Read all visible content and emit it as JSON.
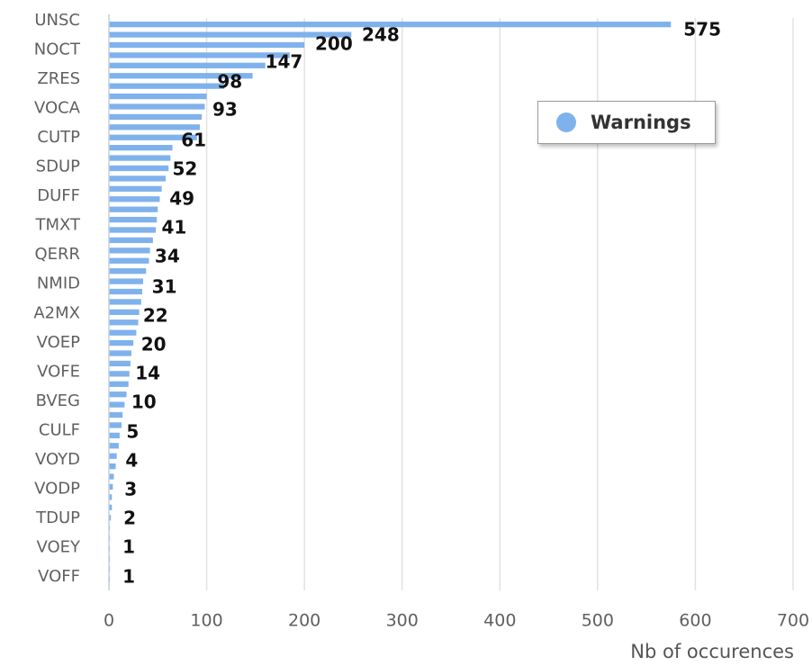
{
  "chart_data": {
    "type": "bar",
    "orientation": "horizontal",
    "categories": [
      "UNSC",
      "NOCT",
      "ZRES",
      "VOCA",
      "CUTP",
      "SDUP",
      "DUFF",
      "TMXT",
      "QERR",
      "NMID",
      "A2MX",
      "VOEP",
      "VOFE",
      "BVEG",
      "CULF",
      "VOYD",
      "VODP",
      "TDUP",
      "VOEY",
      "VOFF"
    ],
    "labeled_values": [
      575,
      248,
      200,
      147,
      98,
      93,
      61,
      52,
      49,
      41,
      34,
      31,
      22,
      20,
      14,
      10,
      5,
      4,
      3,
      2,
      1,
      1
    ],
    "bar_values": [
      575,
      248,
      200,
      185,
      160,
      147,
      118,
      100,
      98,
      95,
      93,
      90,
      65,
      63,
      61,
      58,
      54,
      52,
      50,
      49,
      48,
      45,
      42,
      41,
      38,
      35,
      34,
      33,
      31,
      30,
      28,
      25,
      23,
      22,
      21,
      20,
      18,
      16,
      14,
      13,
      11,
      10,
      8,
      7,
      5,
      4,
      3,
      3,
      2,
      1,
      1,
      1,
      1,
      1,
      1
    ],
    "series": [
      {
        "name": "Warnings"
      }
    ],
    "xlabel": "Nb of occurences",
    "ylabel": "",
    "xlim": [
      0,
      700
    ],
    "xticks": [
      0,
      100,
      200,
      300,
      400,
      500,
      600,
      700
    ],
    "grid": "vertical",
    "legend_position": "right-top",
    "bar_color": "#7fb2ec"
  },
  "legend": {
    "label": "Warnings"
  },
  "axis": {
    "x_title": "Nb of occurences"
  }
}
